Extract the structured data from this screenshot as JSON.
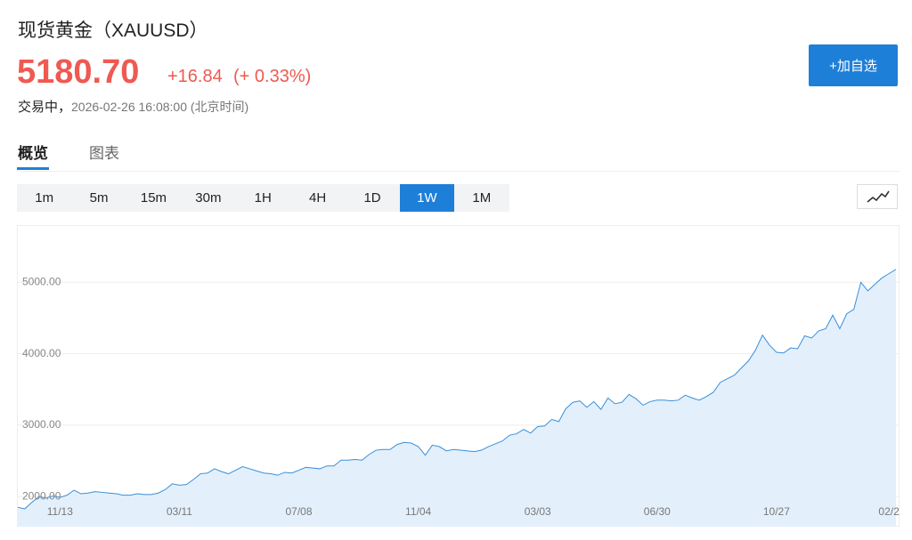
{
  "header": {
    "title": "现货黄金（XAUUSD）",
    "price": "5180.70",
    "change": "+16.84",
    "change_pct": "(+ 0.33%)",
    "status": "交易中，",
    "time": "2026-02-26 16:08:00 (北京时间)",
    "add_button": "+加自选"
  },
  "tabs": [
    "概览",
    "图表"
  ],
  "intervals": [
    "1m",
    "5m",
    "15m",
    "30m",
    "1H",
    "4H",
    "1D",
    "1W",
    "1M"
  ],
  "chart_data": {
    "type": "area",
    "color": "#3a8fd9",
    "fill": "#e3f0fc",
    "grid": true,
    "ylim": [
      1580,
      5800
    ],
    "yticks": [
      {
        "value": 2000,
        "label": "2000.00"
      },
      {
        "value": 3000,
        "label": "3000.00"
      },
      {
        "value": 4000,
        "label": "4000.00"
      },
      {
        "value": 5000,
        "label": "5000.00"
      }
    ],
    "categories": [
      null,
      null,
      null,
      null,
      null,
      null,
      "11/13",
      null,
      null,
      null,
      null,
      null,
      null,
      null,
      null,
      null,
      null,
      null,
      null,
      null,
      null,
      null,
      null,
      "03/11",
      null,
      null,
      null,
      null,
      null,
      null,
      null,
      null,
      null,
      null,
      null,
      null,
      null,
      null,
      null,
      null,
      "07/08",
      null,
      null,
      null,
      null,
      null,
      null,
      null,
      null,
      null,
      null,
      null,
      null,
      null,
      null,
      null,
      null,
      "11/04",
      null,
      null,
      null,
      null,
      null,
      null,
      null,
      null,
      null,
      null,
      null,
      null,
      null,
      null,
      null,
      null,
      "03/03",
      null,
      null,
      null,
      null,
      null,
      null,
      null,
      null,
      null,
      null,
      null,
      null,
      null,
      null,
      null,
      null,
      "06/30",
      null,
      null,
      null,
      null,
      null,
      null,
      null,
      null,
      null,
      null,
      null,
      null,
      null,
      null,
      null,
      null,
      "10/27",
      null,
      null,
      null,
      null,
      null,
      null,
      null,
      null,
      null,
      null,
      null,
      null,
      null,
      null,
      null,
      "02/2",
      null
    ],
    "values": [
      1850,
      1830,
      1920,
      2000,
      1980,
      2010,
      1990,
      2020,
      2090,
      2040,
      2050,
      2070,
      2060,
      2050,
      2040,
      2020,
      2020,
      2040,
      2030,
      2030,
      2050,
      2100,
      2180,
      2160,
      2170,
      2240,
      2320,
      2330,
      2390,
      2350,
      2320,
      2370,
      2420,
      2390,
      2360,
      2330,
      2320,
      2300,
      2340,
      2330,
      2370,
      2410,
      2400,
      2390,
      2430,
      2430,
      2510,
      2510,
      2520,
      2510,
      2590,
      2650,
      2660,
      2660,
      2730,
      2760,
      2750,
      2700,
      2580,
      2720,
      2700,
      2640,
      2660,
      2650,
      2640,
      2630,
      2650,
      2700,
      2740,
      2780,
      2860,
      2880,
      2940,
      2890,
      2980,
      2990,
      3080,
      3050,
      3230,
      3320,
      3340,
      3250,
      3330,
      3220,
      3380,
      3300,
      3320,
      3430,
      3370,
      3280,
      3330,
      3350,
      3350,
      3340,
      3350,
      3420,
      3380,
      3350,
      3400,
      3460,
      3600,
      3650,
      3700,
      3800,
      3900,
      4050,
      4260,
      4120,
      4020,
      4010,
      4080,
      4070,
      4250,
      4220,
      4320,
      4350,
      4540,
      4350,
      4560,
      4620,
      5000,
      4880,
      4970,
      5060,
      5120,
      5180.7
    ]
  }
}
